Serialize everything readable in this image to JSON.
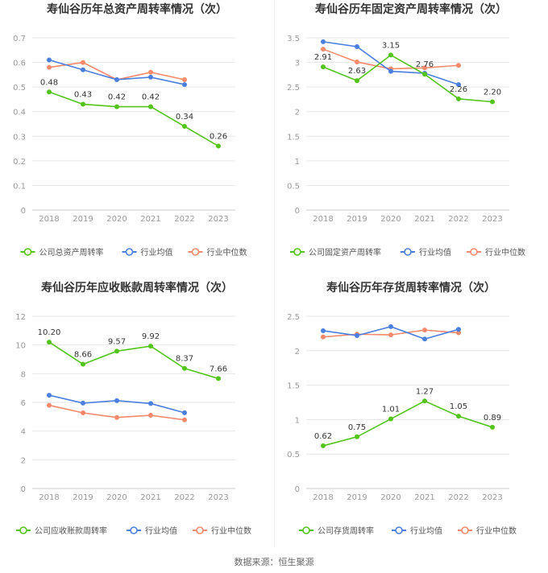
{
  "source_text": "数据来源：恒生聚源",
  "colors": {
    "company": "#52c41a",
    "avg": "#4a7fe0",
    "median": "#f4896b",
    "grid": "#e6e6e6",
    "axis": "#999999",
    "title": "#333333"
  },
  "chart_data": [
    {
      "type": "line",
      "title": "寿仙谷历年总资产周转率情况（次）",
      "categories": [
        "2018",
        "2019",
        "2020",
        "2021",
        "2022",
        "2023"
      ],
      "ylim": [
        0,
        0.7
      ],
      "yticks": [
        0,
        0.1,
        0.2,
        0.3,
        0.4,
        0.5,
        0.6,
        0.7
      ],
      "ytick_labels": [
        "0",
        "0.1",
        "0.2",
        "0.3",
        "0.4",
        "0.5",
        "0.6",
        "0.7"
      ],
      "series": [
        {
          "name": "公司总资产周转率",
          "key": "company",
          "values": [
            0.48,
            0.43,
            0.42,
            0.42,
            0.34,
            0.26
          ],
          "labels": [
            "0.48",
            "0.43",
            "0.42",
            "0.42",
            "0.34",
            "0.26"
          ]
        },
        {
          "name": "行业均值",
          "key": "avg",
          "values": [
            0.61,
            0.57,
            0.53,
            0.54,
            0.51,
            null
          ]
        },
        {
          "name": "行业中位数",
          "key": "median",
          "values": [
            0.58,
            0.6,
            0.53,
            0.56,
            0.53,
            null
          ]
        }
      ],
      "legend": "bottom"
    },
    {
      "type": "line",
      "title": "寿仙谷历年固定资产周转率情况（次）",
      "categories": [
        "2018",
        "2019",
        "2020",
        "2021",
        "2022",
        "2023"
      ],
      "ylim": [
        0,
        3.5
      ],
      "yticks": [
        0,
        0.5,
        1,
        1.5,
        2,
        2.5,
        3,
        3.5
      ],
      "ytick_labels": [
        "0",
        "0.5",
        "1",
        "1.5",
        "2",
        "2.5",
        "3",
        "3.5"
      ],
      "series": [
        {
          "name": "公司固定资产周转率",
          "key": "company",
          "values": [
            2.91,
            2.63,
            3.15,
            2.76,
            2.26,
            2.2
          ],
          "labels": [
            "2.91",
            "2.63",
            "3.15",
            "2.76",
            "2.26",
            "2.20"
          ]
        },
        {
          "name": "行业均值",
          "key": "avg",
          "values": [
            3.42,
            3.32,
            2.82,
            2.78,
            2.55,
            null
          ]
        },
        {
          "name": "行业中位数",
          "key": "median",
          "values": [
            3.27,
            3.01,
            2.87,
            2.89,
            2.94,
            null
          ]
        }
      ],
      "legend": "bottom"
    },
    {
      "type": "line",
      "title": "寿仙谷历年应收账款周转率情况（次）",
      "categories": [
        "2018",
        "2019",
        "2020",
        "2021",
        "2022",
        "2023"
      ],
      "ylim": [
        0,
        12
      ],
      "yticks": [
        0,
        2,
        4,
        6,
        8,
        10,
        12
      ],
      "ytick_labels": [
        "0",
        "2",
        "4",
        "6",
        "8",
        "10",
        "12"
      ],
      "series": [
        {
          "name": "公司应收账款周转率",
          "key": "company",
          "values": [
            10.2,
            8.66,
            9.57,
            9.92,
            8.37,
            7.66
          ],
          "labels": [
            "10.20",
            "8.66",
            "9.57",
            "9.92",
            "8.37",
            "7.66"
          ]
        },
        {
          "name": "行业均值",
          "key": "avg",
          "values": [
            6.5,
            5.95,
            6.12,
            5.92,
            5.28,
            null
          ]
        },
        {
          "name": "行业中位数",
          "key": "median",
          "values": [
            5.8,
            5.27,
            4.95,
            5.1,
            4.78,
            null
          ]
        }
      ],
      "legend": "bottom"
    },
    {
      "type": "line",
      "title": "寿仙谷历年存货周转率情况（次）",
      "categories": [
        "2018",
        "2019",
        "2020",
        "2021",
        "2022",
        "2023"
      ],
      "ylim": [
        0,
        2.5
      ],
      "yticks": [
        0,
        0.5,
        1,
        1.5,
        2,
        2.5
      ],
      "ytick_labels": [
        "0",
        "0.5",
        "1",
        "1.5",
        "2",
        "2.5"
      ],
      "series": [
        {
          "name": "公司存货周转率",
          "key": "company",
          "values": [
            0.62,
            0.75,
            1.01,
            1.27,
            1.05,
            0.89
          ],
          "labels": [
            "0.62",
            "0.75",
            "1.01",
            "1.27",
            "1.05",
            "0.89"
          ]
        },
        {
          "name": "行业均值",
          "key": "avg",
          "values": [
            2.29,
            2.22,
            2.35,
            2.17,
            2.31,
            null
          ]
        },
        {
          "name": "行业中位数",
          "key": "median",
          "values": [
            2.2,
            2.24,
            2.23,
            2.3,
            2.26,
            null
          ]
        }
      ],
      "legend": "bottom"
    }
  ]
}
